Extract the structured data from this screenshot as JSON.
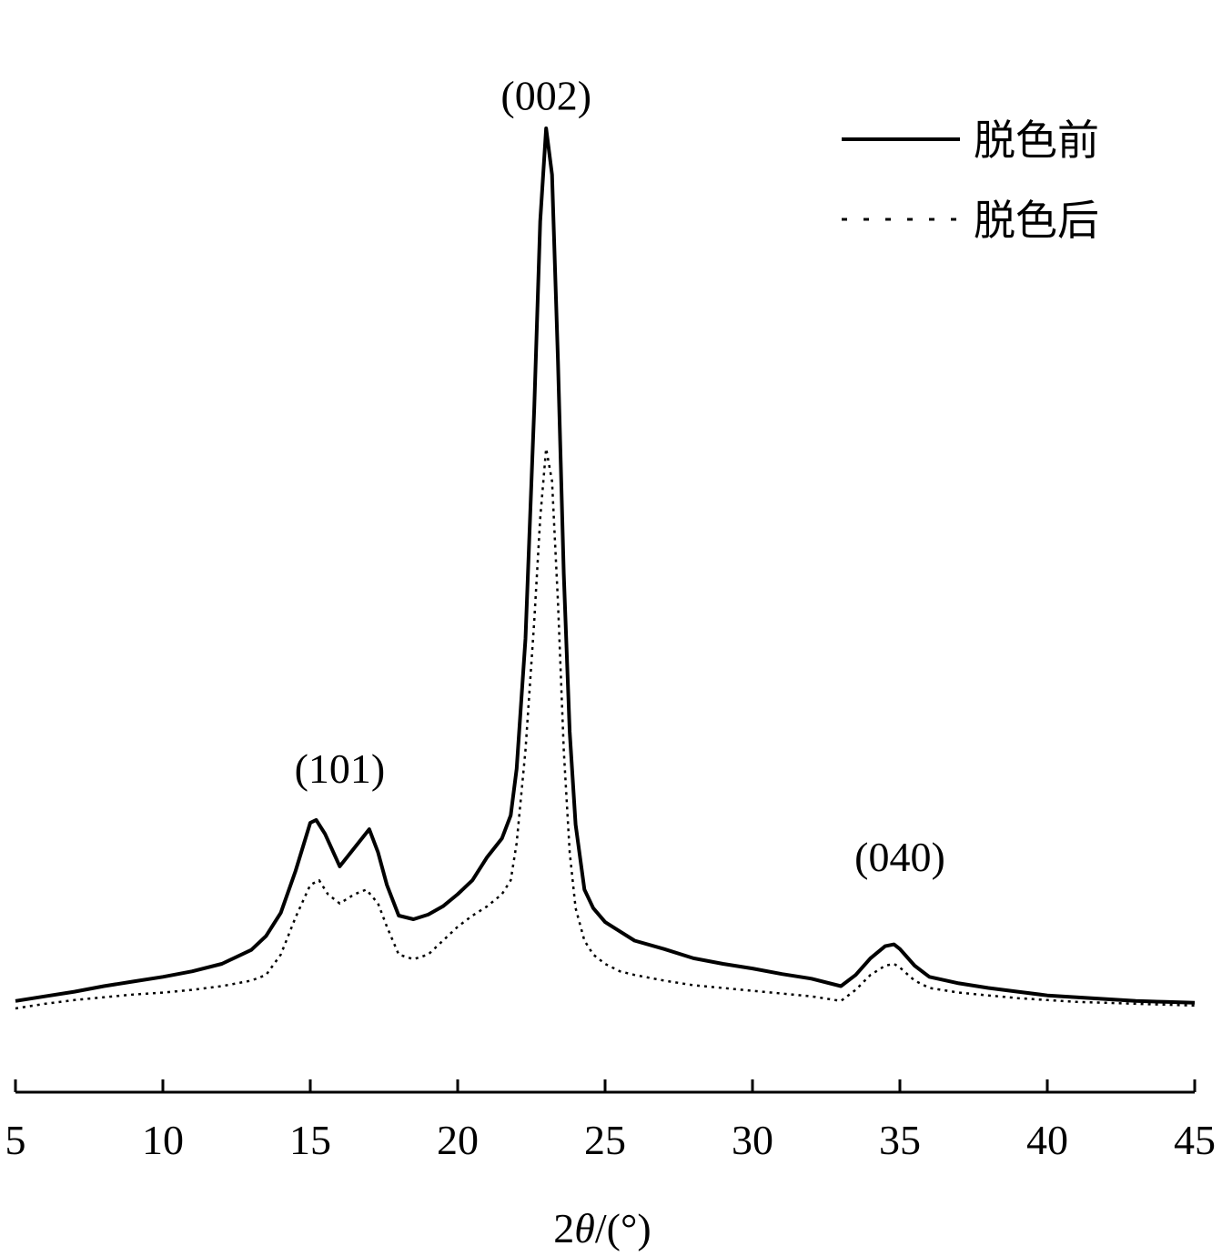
{
  "chart_data": {
    "type": "line",
    "title": "",
    "xlabel": "2θ/(°)",
    "xlabel_parts": {
      "pre": "2",
      "theta": "θ",
      "post": "/(°)"
    },
    "ylabel": "",
    "xlim": [
      5,
      45
    ],
    "ylim": [
      0,
      100
    ],
    "x_ticks": [
      5,
      10,
      15,
      20,
      25,
      30,
      35,
      40,
      45
    ],
    "y_axis_visible": false,
    "grid": false,
    "legend": {
      "position": "top-right"
    },
    "annotations": [
      {
        "text": "(101)",
        "x": 16.0,
        "y": 24.5
      },
      {
        "text": "(002)",
        "x": 23.0,
        "y": 97.0
      },
      {
        "text": "(040)",
        "x": 35.0,
        "y": 15.0
      }
    ],
    "series": [
      {
        "name": "脱色前",
        "style": "solid",
        "x": [
          5,
          6,
          7,
          8,
          9,
          10,
          11,
          12,
          13,
          13.5,
          14,
          14.5,
          15,
          15.2,
          15.5,
          16,
          16.5,
          17,
          17.3,
          17.6,
          18,
          18.5,
          19,
          19.5,
          20,
          20.5,
          21,
          21.5,
          21.8,
          22,
          22.3,
          22.6,
          22.8,
          23,
          23.2,
          23.4,
          23.6,
          23.8,
          24,
          24.3,
          24.6,
          25,
          25.5,
          26,
          27,
          28,
          29,
          30,
          31,
          32,
          33,
          33.5,
          34,
          34.5,
          34.8,
          35,
          35.5,
          36,
          37,
          38,
          39,
          40,
          41,
          42,
          43,
          44,
          45
        ],
        "y": [
          1.0,
          1.5,
          2.0,
          2.6,
          3.1,
          3.6,
          4.2,
          5.0,
          6.5,
          8.0,
          10.5,
          15.0,
          20.2,
          20.5,
          19.0,
          15.5,
          17.5,
          19.5,
          17.0,
          13.5,
          10.2,
          9.8,
          10.3,
          11.2,
          12.5,
          14.0,
          16.5,
          18.5,
          21.0,
          26.0,
          40.0,
          65.0,
          85.0,
          95.0,
          90.0,
          70.0,
          47.0,
          30.0,
          20.0,
          13.0,
          11.0,
          9.5,
          8.5,
          7.5,
          6.6,
          5.6,
          5.0,
          4.5,
          3.9,
          3.4,
          2.6,
          3.8,
          5.6,
          6.9,
          7.1,
          6.6,
          4.8,
          3.6,
          2.9,
          2.4,
          2.0,
          1.6,
          1.4,
          1.2,
          1.0,
          0.9,
          0.8
        ]
      },
      {
        "name": "脱色后",
        "style": "dotted",
        "x": [
          5,
          6,
          7,
          8,
          9,
          10,
          11,
          12,
          13,
          13.5,
          14,
          14.5,
          15,
          15.3,
          15.6,
          16,
          16.5,
          16.9,
          17.3,
          17.6,
          18,
          18.5,
          19,
          19.5,
          20,
          20.5,
          21,
          21.5,
          21.8,
          22,
          22.3,
          22.6,
          22.8,
          23,
          23.2,
          23.4,
          23.6,
          23.8,
          24,
          24.3,
          24.6,
          25,
          25.5,
          26,
          27,
          28,
          29,
          30,
          31,
          32,
          33,
          33.5,
          34,
          34.5,
          34.8,
          35,
          35.5,
          36,
          37,
          38,
          39,
          40,
          41,
          42,
          43,
          44,
          45
        ],
        "y": [
          0.2,
          0.7,
          1.1,
          1.4,
          1.7,
          1.9,
          2.2,
          2.6,
          3.2,
          3.8,
          6.0,
          10.0,
          13.5,
          14.0,
          12.5,
          11.5,
          12.5,
          13.0,
          11.5,
          9.0,
          6.0,
          5.5,
          6.0,
          7.5,
          9.0,
          10.2,
          11.2,
          12.5,
          14.0,
          18.0,
          28.0,
          42.0,
          53.0,
          60.5,
          57.0,
          44.0,
          28.0,
          17.0,
          11.0,
          7.5,
          6.0,
          5.0,
          4.2,
          3.8,
          3.2,
          2.7,
          2.4,
          2.1,
          1.8,
          1.5,
          1.0,
          2.2,
          3.8,
          4.8,
          5.0,
          4.6,
          3.2,
          2.4,
          1.9,
          1.6,
          1.3,
          1.1,
          0.9,
          0.8,
          0.7,
          0.6,
          0.5
        ]
      }
    ]
  }
}
